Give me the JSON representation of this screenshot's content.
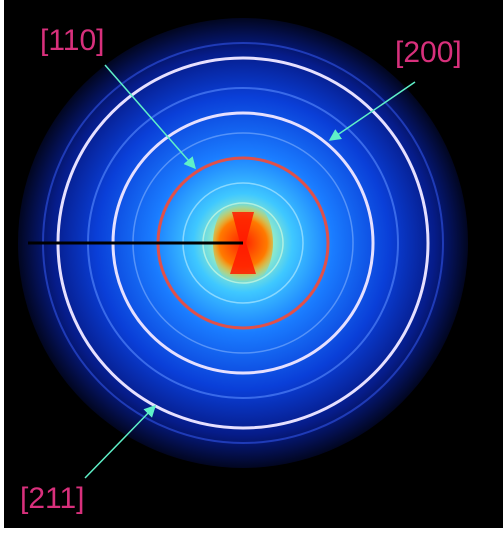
{
  "annotations": [
    "[110]",
    "[200]",
    "[211]"
  ]
}
